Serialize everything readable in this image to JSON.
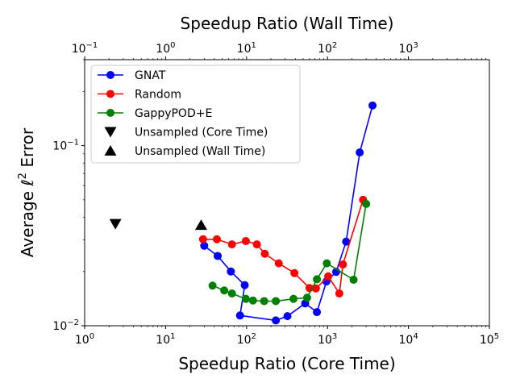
{
  "chart_data": {
    "type": "line",
    "xlabel_bottom": "Speedup Ratio (Core Time)",
    "xlabel_top": "Speedup Ratio (Wall Time)",
    "ylabel_prefix": "Average ",
    "ylabel_ell": "ℓ",
    "ylabel_sup": "2",
    "ylabel_suffix": " Error",
    "xscale": "log",
    "yscale": "log",
    "xlim_bottom": [
      1,
      100000
    ],
    "xlim_top": [
      0.1,
      10000
    ],
    "ylim": [
      0.01,
      0.3
    ],
    "grid": false,
    "legend_position": "top-left",
    "xticks_bottom": [
      {
        "value": 1,
        "base": "10",
        "exp": "0"
      },
      {
        "value": 10,
        "base": "10",
        "exp": "1"
      },
      {
        "value": 100,
        "base": "10",
        "exp": "2"
      },
      {
        "value": 1000,
        "base": "10",
        "exp": "3"
      },
      {
        "value": 10000,
        "base": "10",
        "exp": "4"
      },
      {
        "value": 100000,
        "base": "10",
        "exp": "5"
      }
    ],
    "xticks_top": [
      {
        "value": 0.1,
        "base": "10",
        "exp": "−1"
      },
      {
        "value": 1,
        "base": "10",
        "exp": "0"
      },
      {
        "value": 10,
        "base": "10",
        "exp": "1"
      },
      {
        "value": 100,
        "base": "10",
        "exp": "2"
      },
      {
        "value": 1000,
        "base": "10",
        "exp": "3"
      }
    ],
    "yticks": [
      {
        "value": 0.01,
        "base": "10",
        "exp": "−2"
      },
      {
        "value": 0.1,
        "base": "10",
        "exp": "−1"
      }
    ],
    "series": [
      {
        "name": "GNAT",
        "color": "#0000ff",
        "marker": "circle",
        "x": [
          30,
          44,
          64,
          95,
          83,
          230,
          320,
          530,
          740,
          970,
          1280,
          1700,
          2500,
          3600
        ],
        "y": [
          0.0278,
          0.0244,
          0.02,
          0.0168,
          0.0114,
          0.0107,
          0.0113,
          0.0133,
          0.0119,
          0.0176,
          0.0199,
          0.0293,
          0.0916,
          0.167
        ]
      },
      {
        "name": "Random",
        "color": "#ff0000",
        "marker": "circle",
        "x": [
          29,
          43,
          66,
          98,
          134,
          168,
          250,
          390,
          600,
          720,
          1020,
          1400,
          1550,
          2750
        ],
        "y": [
          0.0302,
          0.0302,
          0.0283,
          0.0295,
          0.0283,
          0.0251,
          0.0222,
          0.0196,
          0.0162,
          0.0161,
          0.0188,
          0.0151,
          0.0219,
          0.05
        ]
      },
      {
        "name": "GappyPOD+E",
        "color": "#008000",
        "marker": "circle",
        "x": [
          38,
          53,
          66,
          98,
          120,
          165,
          230,
          380,
          560,
          740,
          980,
          2100,
          3000
        ],
        "y": [
          0.0167,
          0.0157,
          0.0151,
          0.0141,
          0.0138,
          0.0137,
          0.0137,
          0.0141,
          0.0143,
          0.0181,
          0.0222,
          0.018,
          0.0475
        ]
      },
      {
        "name": "Unsampled (Core Time)",
        "color": "#000000",
        "marker": "triangle-down",
        "x": [
          2.4
        ],
        "y": [
          0.0368
        ]
      },
      {
        "name": "Unsampled (Wall Time)",
        "color": "#000000",
        "marker": "triangle-up",
        "x": [
          27.5
        ],
        "y": [
          0.0362
        ]
      }
    ]
  }
}
